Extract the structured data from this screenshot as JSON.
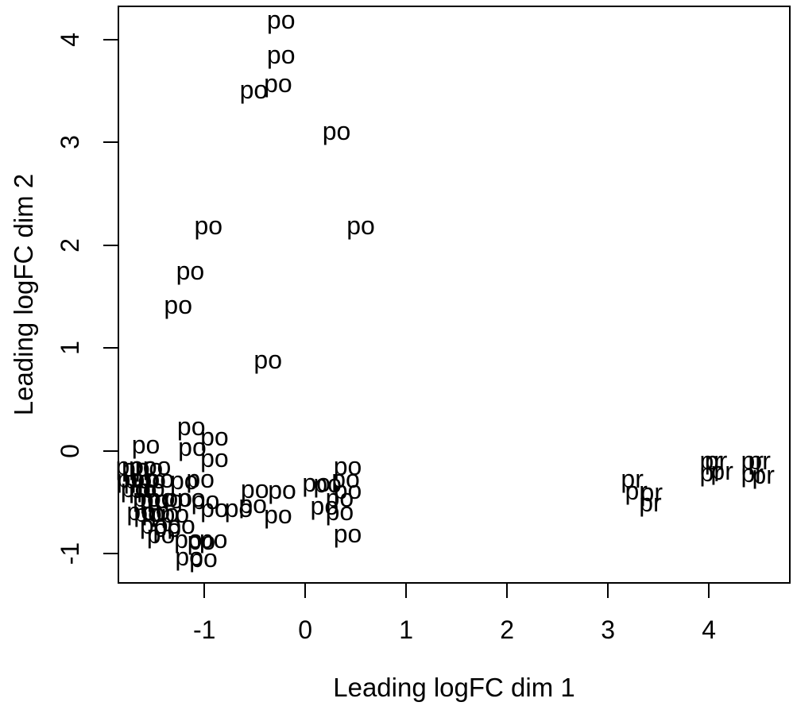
{
  "chart_data": {
    "type": "scatter",
    "title": "",
    "xlabel": "Leading logFC dim 1",
    "ylabel": "Leading logFC dim 2",
    "xlim": [
      -1.86,
      4.81
    ],
    "ylim": [
      -1.29,
      4.33
    ],
    "x_ticks": [
      "-1",
      "0",
      "1",
      "2",
      "3",
      "4"
    ],
    "x_tick_values": [
      -1,
      0,
      1,
      2,
      3,
      4
    ],
    "y_ticks": [
      "-1",
      "0",
      "1",
      "2",
      "3",
      "4"
    ],
    "y_tick_values": [
      -1,
      0,
      1,
      2,
      3,
      4
    ],
    "grid": false,
    "legend_position": "none",
    "point_style": "text-labels",
    "series": [
      {
        "name": "po",
        "label": "po",
        "points": [
          [
            -0.24,
            4.19
          ],
          [
            -0.24,
            3.85
          ],
          [
            -0.51,
            3.51
          ],
          [
            -0.27,
            3.57
          ],
          [
            0.31,
            3.11
          ],
          [
            -0.96,
            2.19
          ],
          [
            0.55,
            2.19
          ],
          [
            -1.14,
            1.75
          ],
          [
            -1.26,
            1.42
          ],
          [
            -0.37,
            0.89
          ],
          [
            -1.13,
            0.24
          ],
          [
            -0.9,
            0.14
          ],
          [
            -1.58,
            0.06
          ],
          [
            -1.12,
            0.04
          ],
          [
            -0.9,
            -0.07
          ],
          [
            -1.74,
            -0.15
          ],
          [
            -1.68,
            -0.16
          ],
          [
            -1.61,
            -0.15
          ],
          [
            -1.55,
            -0.16
          ],
          [
            -1.47,
            -0.15
          ],
          [
            -1.73,
            -0.27
          ],
          [
            -1.66,
            -0.28
          ],
          [
            -1.59,
            -0.27
          ],
          [
            -1.52,
            -0.28
          ],
          [
            -1.44,
            -0.27
          ],
          [
            -1.2,
            -0.29
          ],
          [
            -1.04,
            -0.27
          ],
          [
            -1.69,
            -0.36
          ],
          [
            -1.61,
            -0.37
          ],
          [
            -1.53,
            -0.36
          ],
          [
            -1.57,
            -0.46
          ],
          [
            -1.5,
            -0.47
          ],
          [
            -1.43,
            -0.46
          ],
          [
            -1.35,
            -0.47
          ],
          [
            -1.26,
            -0.46
          ],
          [
            -1.13,
            -0.46
          ],
          [
            -1.63,
            -0.59
          ],
          [
            -1.56,
            -0.6
          ],
          [
            -1.48,
            -0.59
          ],
          [
            -1.39,
            -0.6
          ],
          [
            -1.29,
            -0.61
          ],
          [
            -1.5,
            -0.72
          ],
          [
            -1.37,
            -0.75
          ],
          [
            -1.23,
            -0.72
          ],
          [
            -1.43,
            -0.81
          ],
          [
            -1.16,
            -0.86
          ],
          [
            -1.03,
            -0.87
          ],
          [
            -0.91,
            -0.86
          ],
          [
            -1.15,
            -1.03
          ],
          [
            -1.01,
            -1.04
          ],
          [
            -0.99,
            -0.48
          ],
          [
            -0.9,
            -0.56
          ],
          [
            -0.5,
            -0.37
          ],
          [
            -0.23,
            -0.38
          ],
          [
            -0.52,
            -0.52
          ],
          [
            -0.27,
            -0.62
          ],
          [
            -0.66,
            -0.56
          ],
          [
            0.42,
            -0.15
          ],
          [
            0.11,
            -0.31
          ],
          [
            0.22,
            -0.32
          ],
          [
            0.4,
            -0.27
          ],
          [
            0.42,
            -0.38
          ],
          [
            0.34,
            -0.46
          ],
          [
            0.19,
            -0.53
          ],
          [
            0.34,
            -0.59
          ],
          [
            0.42,
            -0.8
          ]
        ]
      },
      {
        "name": "pr",
        "label": "pr",
        "points": [
          [
            3.24,
            -0.27
          ],
          [
            3.28,
            -0.39
          ],
          [
            3.43,
            -0.4
          ],
          [
            3.42,
            -0.5
          ],
          [
            4.02,
            -0.09
          ],
          [
            4.07,
            -0.09
          ],
          [
            4.02,
            -0.21
          ],
          [
            4.13,
            -0.19
          ],
          [
            4.43,
            -0.09
          ],
          [
            4.5,
            -0.09
          ],
          [
            4.43,
            -0.22
          ],
          [
            4.54,
            -0.23
          ]
        ]
      }
    ]
  },
  "colors": {
    "text": "#000000",
    "box": "#000000",
    "background": "#ffffff"
  }
}
